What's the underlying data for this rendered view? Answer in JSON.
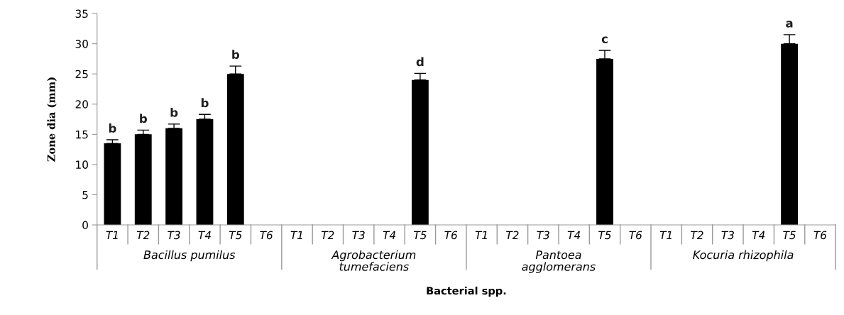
{
  "chart_data": {
    "type": "bar",
    "xlabel": "Bacterial spp.",
    "ylabel": "Zone dia (mm)",
    "categories": [
      "T1",
      "T2",
      "T3",
      "T4",
      "T5",
      "T6",
      "T1",
      "T2",
      "T3",
      "T4",
      "T5",
      "T6",
      "T1",
      "T2",
      "T3",
      "T4",
      "T5",
      "T6",
      "T1",
      "T2",
      "T3",
      "T4",
      "T5",
      "T6"
    ],
    "values": [
      13.5,
      15,
      16,
      17.5,
      25,
      null,
      null,
      null,
      null,
      null,
      24,
      null,
      null,
      null,
      null,
      null,
      27.5,
      null,
      null,
      null,
      null,
      null,
      30,
      null
    ],
    "errors": [
      [
        13.5,
        14.1
      ],
      [
        15,
        15.7
      ],
      [
        16,
        16.7
      ],
      [
        17.5,
        18.3
      ],
      [
        25,
        26.3
      ],
      null,
      null,
      null,
      null,
      null,
      [
        24,
        25.1
      ],
      null,
      null,
      null,
      null,
      null,
      [
        27.5,
        28.9
      ],
      null,
      null,
      null,
      null,
      null,
      [
        30,
        31.5
      ],
      null
    ],
    "value_labels": [
      "b",
      "b",
      "b",
      "b",
      "b",
      null,
      null,
      null,
      null,
      null,
      "d",
      null,
      null,
      null,
      null,
      null,
      "c",
      null,
      null,
      null,
      null,
      null,
      "a",
      null
    ],
    "color": "#000000",
    "annotations": [
      "Bacillus pumilus",
      "Agrobacterium\ntumefaciens",
      "Pantoea\nagglomerans",
      "Kocuria rhizophila"
    ],
    "ylim": [
      0,
      35
    ],
    "yticks": [
      0,
      5,
      10,
      15,
      20,
      25,
      30,
      35
    ],
    "grid": false
  }
}
